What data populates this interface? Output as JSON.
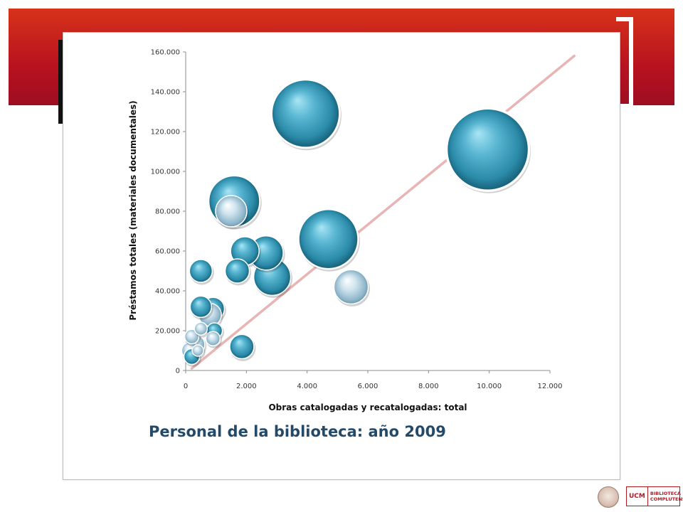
{
  "slide": {
    "subtitle": "Personal de la biblioteca: año 2009",
    "accent_color": "#c41e1e",
    "title_color": "#244a6a"
  },
  "logos": {
    "left": "university-seal-icon",
    "right": "UCM BIBLIOTECA COMPLUTENSE"
  },
  "chart_data": {
    "type": "bubble",
    "title": "",
    "xlabel": "Obras catalogadas y recatalogadas: total",
    "ylabel": "Préstamos totales (materiales documentales)",
    "xlim": [
      0,
      12000
    ],
    "ylim": [
      0,
      160000
    ],
    "x_ticks": [
      0,
      2000,
      4000,
      6000,
      8000,
      10000,
      12000
    ],
    "x_tick_labels": [
      "0",
      "2.000",
      "4.000",
      "6.000",
      "8.000",
      "10.000",
      "12.000"
    ],
    "y_ticks": [
      0,
      20000,
      40000,
      60000,
      80000,
      100000,
      120000,
      140000,
      160000
    ],
    "y_tick_labels": [
      "0",
      "20.000",
      "40.000",
      "60.000",
      "80.000",
      "100.000",
      "120.000",
      "140.000",
      "160.000"
    ],
    "grid": false,
    "trendline": {
      "type": "linear",
      "from": [
        200,
        1000
      ],
      "to": [
        12800,
        158000
      ],
      "color": "#e8b4b4"
    },
    "bubble_colors": {
      "dark": "#2a8aa8",
      "light": "#a9ccdc"
    },
    "points": [
      {
        "x": 3950,
        "y": 129000,
        "size": 48,
        "shade": "dark"
      },
      {
        "x": 9950,
        "y": 111000,
        "size": 58,
        "shade": "dark"
      },
      {
        "x": 1600,
        "y": 85000,
        "size": 36,
        "shade": "dark"
      },
      {
        "x": 1500,
        "y": 80000,
        "size": 22,
        "shade": "light"
      },
      {
        "x": 4700,
        "y": 66000,
        "size": 42,
        "shade": "dark"
      },
      {
        "x": 1950,
        "y": 60000,
        "size": 20,
        "shade": "dark"
      },
      {
        "x": 2650,
        "y": 59000,
        "size": 24,
        "shade": "dark"
      },
      {
        "x": 2850,
        "y": 47000,
        "size": 26,
        "shade": "dark"
      },
      {
        "x": 1700,
        "y": 50000,
        "size": 17,
        "shade": "dark"
      },
      {
        "x": 500,
        "y": 50000,
        "size": 16,
        "shade": "dark"
      },
      {
        "x": 5450,
        "y": 42000,
        "size": 24,
        "shade": "light"
      },
      {
        "x": 900,
        "y": 31000,
        "size": 16,
        "shade": "dark"
      },
      {
        "x": 500,
        "y": 32000,
        "size": 15,
        "shade": "dark"
      },
      {
        "x": 800,
        "y": 28000,
        "size": 16,
        "shade": "light"
      },
      {
        "x": 950,
        "y": 20000,
        "size": 11,
        "shade": "dark"
      },
      {
        "x": 500,
        "y": 21000,
        "size": 9,
        "shade": "light"
      },
      {
        "x": 200,
        "y": 17000,
        "size": 10,
        "shade": "light"
      },
      {
        "x": 900,
        "y": 16000,
        "size": 10,
        "shade": "light"
      },
      {
        "x": 300,
        "y": 13000,
        "size": 14,
        "shade": "light"
      },
      {
        "x": 1850,
        "y": 12000,
        "size": 17,
        "shade": "dark"
      },
      {
        "x": 150,
        "y": 10000,
        "size": 12,
        "shade": "light"
      },
      {
        "x": 400,
        "y": 10000,
        "size": 8,
        "shade": "light"
      },
      {
        "x": 200,
        "y": 7000,
        "size": 11,
        "shade": "dark"
      }
    ]
  }
}
